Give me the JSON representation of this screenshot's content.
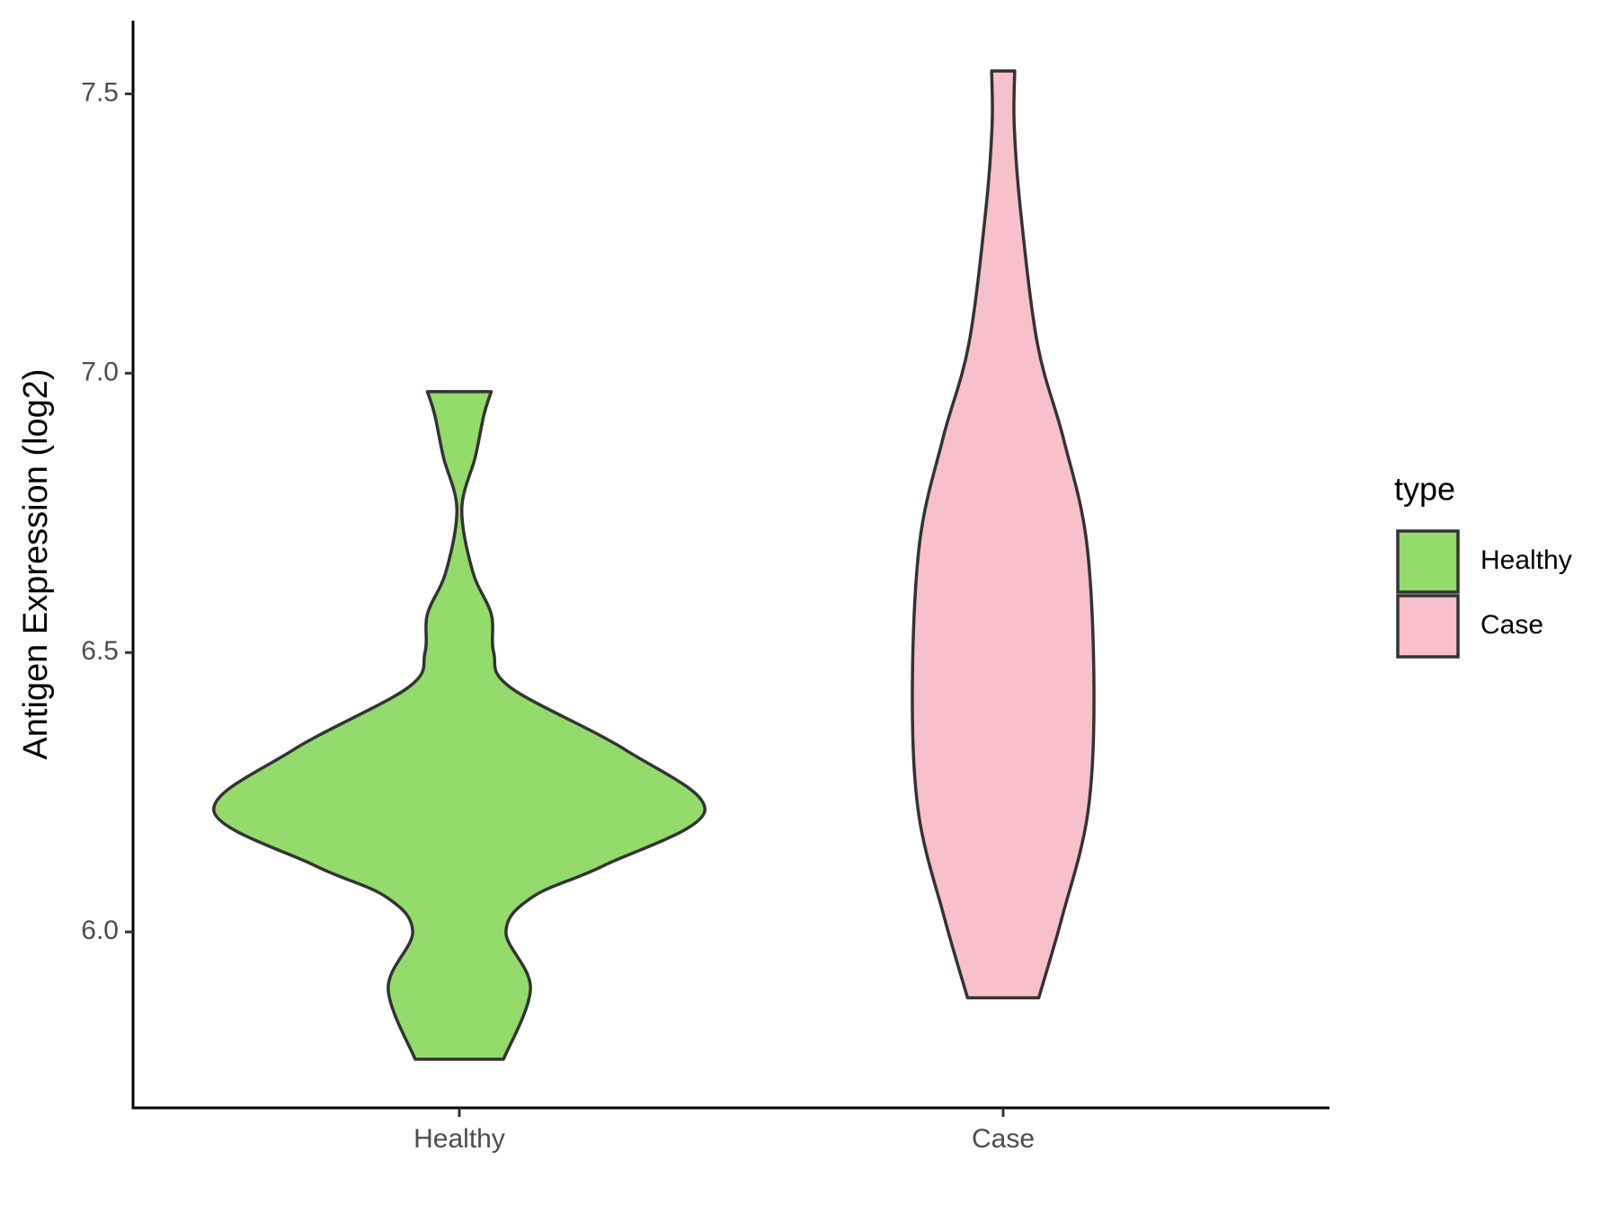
{
  "chart_data": {
    "type": "violin",
    "y_label": "Antigen Expression (log2)",
    "legend_title": "type",
    "categories": [
      "Healthy",
      "Case"
    ],
    "series": [
      {
        "name": "Healthy",
        "color": "#93db6a",
        "y": [
          5.772,
          5.899,
          6.0,
          6.063,
          6.119,
          6.216,
          6.325,
          6.437,
          6.5,
          6.569,
          6.644,
          6.757,
          6.85,
          6.925,
          6.967
        ],
        "density": [
          0.18,
          0.29,
          0.19,
          0.3,
          0.59,
          1.0,
          0.68,
          0.21,
          0.14,
          0.13,
          0.055,
          0.01,
          0.065,
          0.1,
          0.13
        ]
      },
      {
        "name": "Case",
        "color": "#f7c0cb",
        "y": [
          5.882,
          6.026,
          6.213,
          6.437,
          6.698,
          6.884,
          7.052,
          7.295,
          7.444,
          7.541
        ],
        "density": [
          0.145,
          0.24,
          0.345,
          0.37,
          0.34,
          0.245,
          0.14,
          0.07,
          0.045,
          0.047
        ]
      }
    ],
    "ylim": [
      5.685,
      7.631
    ],
    "yticks": [
      {
        "value": 6.0,
        "label": "6.0"
      },
      {
        "value": 6.5,
        "label": "6.5"
      },
      {
        "value": 7.0,
        "label": "7.0"
      },
      {
        "value": 7.5,
        "label": "7.5"
      }
    ],
    "outline_color": "#333333",
    "legend_position": "right"
  }
}
